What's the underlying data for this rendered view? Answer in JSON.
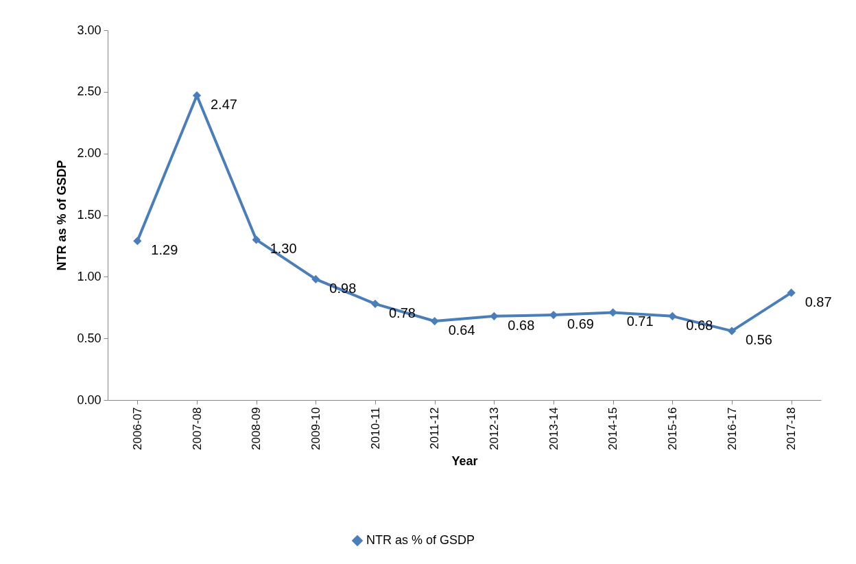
{
  "chart_data": {
    "type": "line",
    "xlabel": "Year",
    "ylabel": "NTR as % of GSDP",
    "categories": [
      "2006-07",
      "2007-08",
      "2008-09",
      "2009-10",
      "2010-11",
      "2011-12",
      "2012-13",
      "2013-14",
      "2014-15",
      "2015-16",
      "2016-17",
      "2017-18"
    ],
    "series": [
      {
        "name": "NTR as % of GSDP",
        "color": "#4a7ebb",
        "values": [
          1.29,
          2.47,
          1.3,
          0.98,
          0.78,
          0.64,
          0.68,
          0.69,
          0.71,
          0.68,
          0.56,
          0.87
        ],
        "value_labels": [
          "1.29",
          "2.47",
          "1.30",
          "0.98",
          "0.78",
          "0.64",
          "0.68",
          "0.69",
          "0.71",
          "0.68",
          "0.56",
          "0.87"
        ]
      }
    ],
    "ylim": [
      0,
      3
    ],
    "yticks": [
      {
        "value": 0,
        "label": "0.00"
      },
      {
        "value": 0.5,
        "label": "0.50"
      },
      {
        "value": 1,
        "label": "1.00"
      },
      {
        "value": 1.5,
        "label": "1.50"
      },
      {
        "value": 2,
        "label": "2.00"
      },
      {
        "value": 2.5,
        "label": "2.50"
      },
      {
        "value": 3,
        "label": "3.00"
      }
    ],
    "marker": "diamond",
    "legend": "bottom",
    "grid": false
  }
}
